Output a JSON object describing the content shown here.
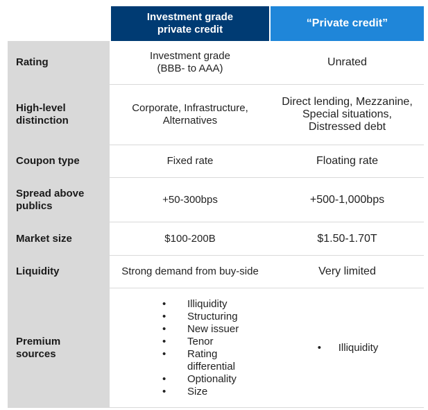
{
  "header": {
    "col1": "Investment grade\nprivate credit",
    "col1_line1": "Investment grade",
    "col1_line2": "private credit",
    "col2": "“Private credit”"
  },
  "rows": [
    {
      "label": "Rating",
      "ig": [
        "Investment grade",
        "(BBB- to AAA)"
      ],
      "pc": [
        "Unrated"
      ]
    },
    {
      "label": [
        "High-level",
        "distinction"
      ],
      "ig": [
        "Corporate, Infrastructure,",
        "Alternatives"
      ],
      "pc": [
        "Direct lending, Mezzanine,",
        "Special situations,",
        "Distressed debt"
      ]
    },
    {
      "label": "Coupon type",
      "ig": [
        "Fixed rate"
      ],
      "pc": [
        "Floating rate"
      ]
    },
    {
      "label": [
        "Spread above",
        "publics"
      ],
      "ig": [
        "+50-300bps"
      ],
      "pc": [
        "+500-1,000bps"
      ]
    },
    {
      "label": "Market size",
      "ig": [
        "$100-200B"
      ],
      "pc": [
        "$1.50-1.70T"
      ]
    },
    {
      "label": "Liquidity",
      "ig": [
        "Strong demand from buy-side"
      ],
      "pc": [
        "Very limited"
      ]
    },
    {
      "label": [
        "Premium",
        "sources"
      ],
      "ig_list": [
        "Illiquidity",
        "Structuring",
        "New issuer",
        "Tenor",
        "Rating differential",
        "Optionality",
        "Size"
      ],
      "pc_list": [
        "Illiquidity"
      ]
    }
  ]
}
